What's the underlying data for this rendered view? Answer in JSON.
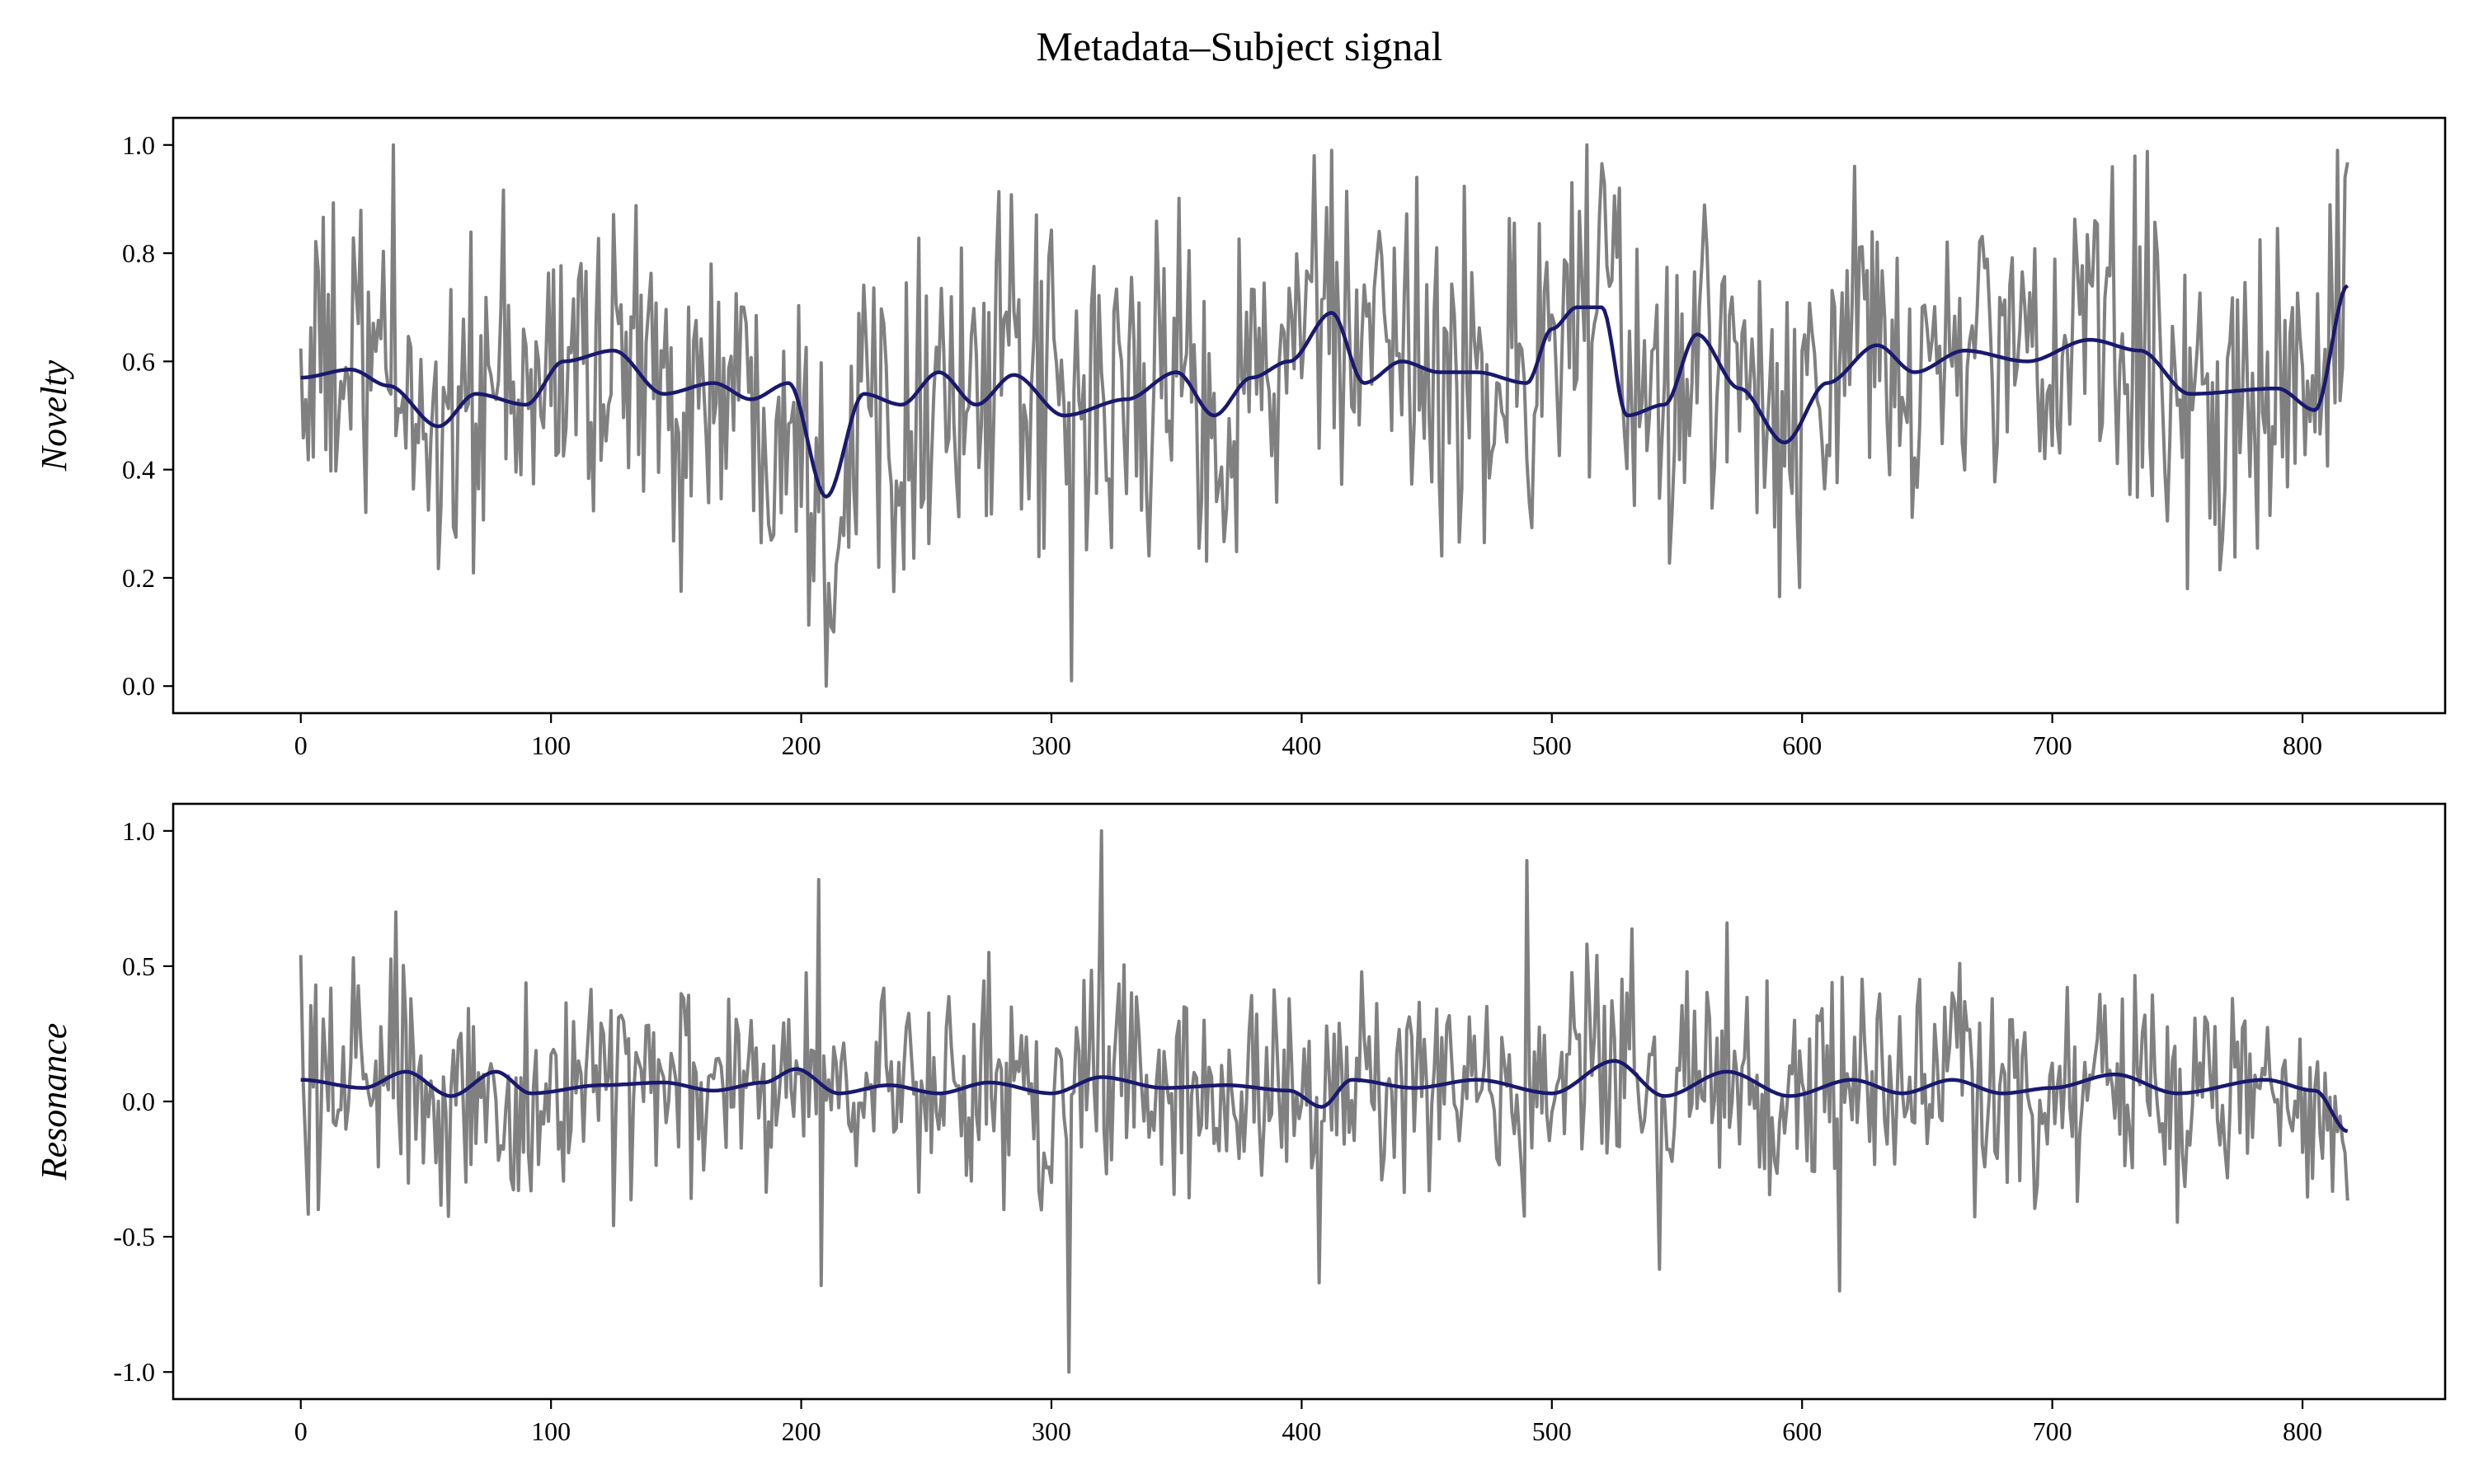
{
  "figure": {
    "title": "Metadata–Subject signal"
  },
  "colors": {
    "raw": "#808080",
    "smooth": "#191970",
    "axes": "#000000"
  },
  "chart_data": [
    {
      "type": "line",
      "title": "Metadata–Subject signal",
      "ylabel": "Novelty",
      "xlabel": "",
      "xlim": [
        -51,
        857
      ],
      "ylim": [
        -0.05,
        1.05
      ],
      "x_ticks": [
        0,
        100,
        200,
        300,
        400,
        500,
        600,
        700,
        800
      ],
      "x_tick_labels": [
        "0",
        "100",
        "200",
        "300",
        "400",
        "500",
        "600",
        "700",
        "800"
      ],
      "y_ticks": [
        0.0,
        0.2,
        0.4,
        0.6,
        0.8,
        1.0
      ],
      "y_tick_labels": [
        "0.0",
        "0.2",
        "0.4",
        "0.6",
        "0.8",
        "1.0"
      ],
      "grid": false,
      "legend": "none",
      "raw_series": {
        "x_range": [
          0,
          818
        ],
        "baseline": 0.57,
        "amplitude": 0.15,
        "extremes": [
          [
            37,
            1.0
          ],
          [
            210,
            0.0
          ],
          [
            213,
            0.1
          ],
          [
            308,
            0.01
          ],
          [
            405,
            0.98
          ],
          [
            514,
            1.0
          ],
          [
            754,
            0.18
          ],
          [
            817,
            0.94
          ],
          [
            527,
            0.92
          ]
        ]
      },
      "smoothed_series": {
        "x": [
          0,
          20,
          35,
          55,
          70,
          90,
          105,
          125,
          145,
          165,
          180,
          195,
          210,
          225,
          240,
          255,
          270,
          285,
          305,
          330,
          350,
          365,
          380,
          395,
          412,
          425,
          440,
          455,
          470,
          490,
          500,
          510,
          520,
          530,
          545,
          558,
          575,
          593,
          610,
          630,
          645,
          665,
          690,
          715,
          735,
          755,
          790,
          805,
          818
        ],
        "y": [
          0.57,
          0.585,
          0.555,
          0.48,
          0.54,
          0.52,
          0.6,
          0.62,
          0.54,
          0.56,
          0.53,
          0.56,
          0.35,
          0.54,
          0.52,
          0.58,
          0.52,
          0.575,
          0.5,
          0.53,
          0.58,
          0.5,
          0.57,
          0.6,
          0.69,
          0.56,
          0.6,
          0.58,
          0.58,
          0.56,
          0.66,
          0.7,
          0.7,
          0.5,
          0.52,
          0.65,
          0.55,
          0.45,
          0.56,
          0.63,
          0.58,
          0.62,
          0.6,
          0.64,
          0.62,
          0.54,
          0.55,
          0.51,
          0.74
        ]
      }
    },
    {
      "type": "line",
      "title": "",
      "ylabel": "Resonance",
      "xlabel": "",
      "xlim": [
        -51,
        857
      ],
      "ylim": [
        -1.1,
        1.1
      ],
      "x_ticks": [
        0,
        100,
        200,
        300,
        400,
        500,
        600,
        700,
        800
      ],
      "x_tick_labels": [
        "0",
        "100",
        "200",
        "300",
        "400",
        "500",
        "600",
        "700",
        "800"
      ],
      "y_ticks": [
        -1.0,
        -0.5,
        0.0,
        0.5,
        1.0
      ],
      "y_tick_labels": [
        "-1.0",
        "-0.5",
        "0.0",
        "0.5",
        "1.0"
      ],
      "grid": false,
      "legend": "none",
      "raw_series": {
        "x_range": [
          0,
          818
        ],
        "baseline": 0.04,
        "amplitude": 0.2,
        "extremes": [
          [
            207,
            0.82
          ],
          [
            208,
            -0.68
          ],
          [
            307,
            -1.0
          ],
          [
            320,
            1.0
          ],
          [
            490,
            0.89
          ],
          [
            543,
            -0.62
          ],
          [
            615,
            -0.7
          ],
          [
            407,
            -0.67
          ],
          [
            38,
            0.7
          ]
        ]
      },
      "smoothed_series": {
        "x": [
          0,
          25,
          42,
          60,
          78,
          92,
          120,
          145,
          165,
          185,
          198,
          215,
          235,
          255,
          275,
          300,
          320,
          345,
          370,
          395,
          408,
          420,
          445,
          470,
          500,
          525,
          545,
          570,
          595,
          620,
          640,
          660,
          680,
          700,
          725,
          750,
          785,
          805,
          818
        ],
        "y": [
          0.08,
          0.05,
          0.11,
          0.02,
          0.11,
          0.03,
          0.06,
          0.07,
          0.04,
          0.07,
          0.12,
          0.03,
          0.06,
          0.03,
          0.07,
          0.03,
          0.09,
          0.05,
          0.06,
          0.04,
          -0.02,
          0.08,
          0.05,
          0.08,
          0.03,
          0.15,
          0.02,
          0.11,
          0.02,
          0.08,
          0.03,
          0.08,
          0.03,
          0.05,
          0.1,
          0.03,
          0.08,
          0.04,
          -0.11
        ]
      }
    }
  ]
}
